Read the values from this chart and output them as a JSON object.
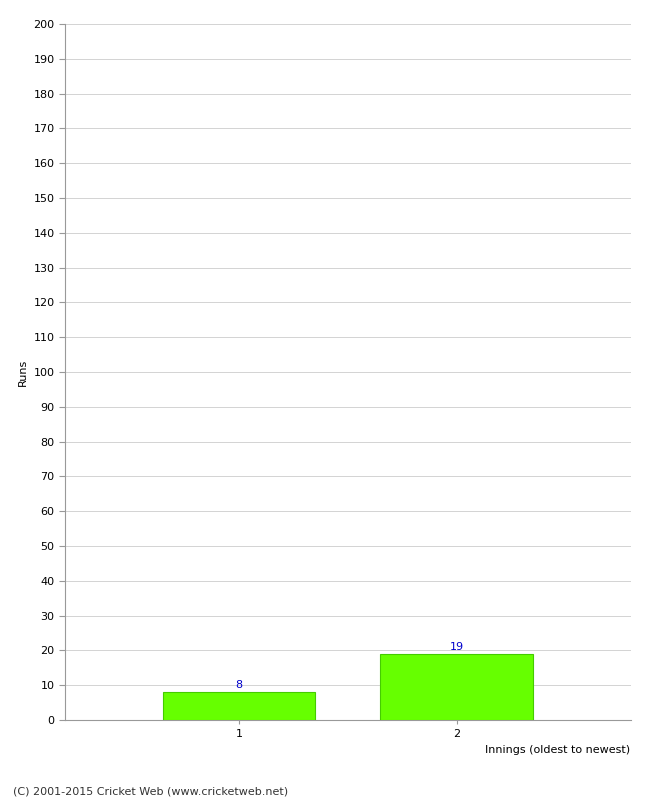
{
  "categories": [
    "1",
    "2"
  ],
  "values": [
    8,
    19
  ],
  "bar_color": "#66ff00",
  "bar_edge_color": "#44cc00",
  "ylabel": "Runs",
  "xlabel": "Innings (oldest to newest)",
  "ylim": [
    0,
    200
  ],
  "ytick_step": 10,
  "background_color": "#ffffff",
  "grid_color": "#cccccc",
  "annotation_color": "#0000cc",
  "footer": "(C) 2001-2015 Cricket Web (www.cricketweb.net)",
  "annotation_fontsize": 8,
  "axis_label_fontsize": 8,
  "tick_label_fontsize": 8,
  "footer_fontsize": 8,
  "spine_color": "#999999"
}
